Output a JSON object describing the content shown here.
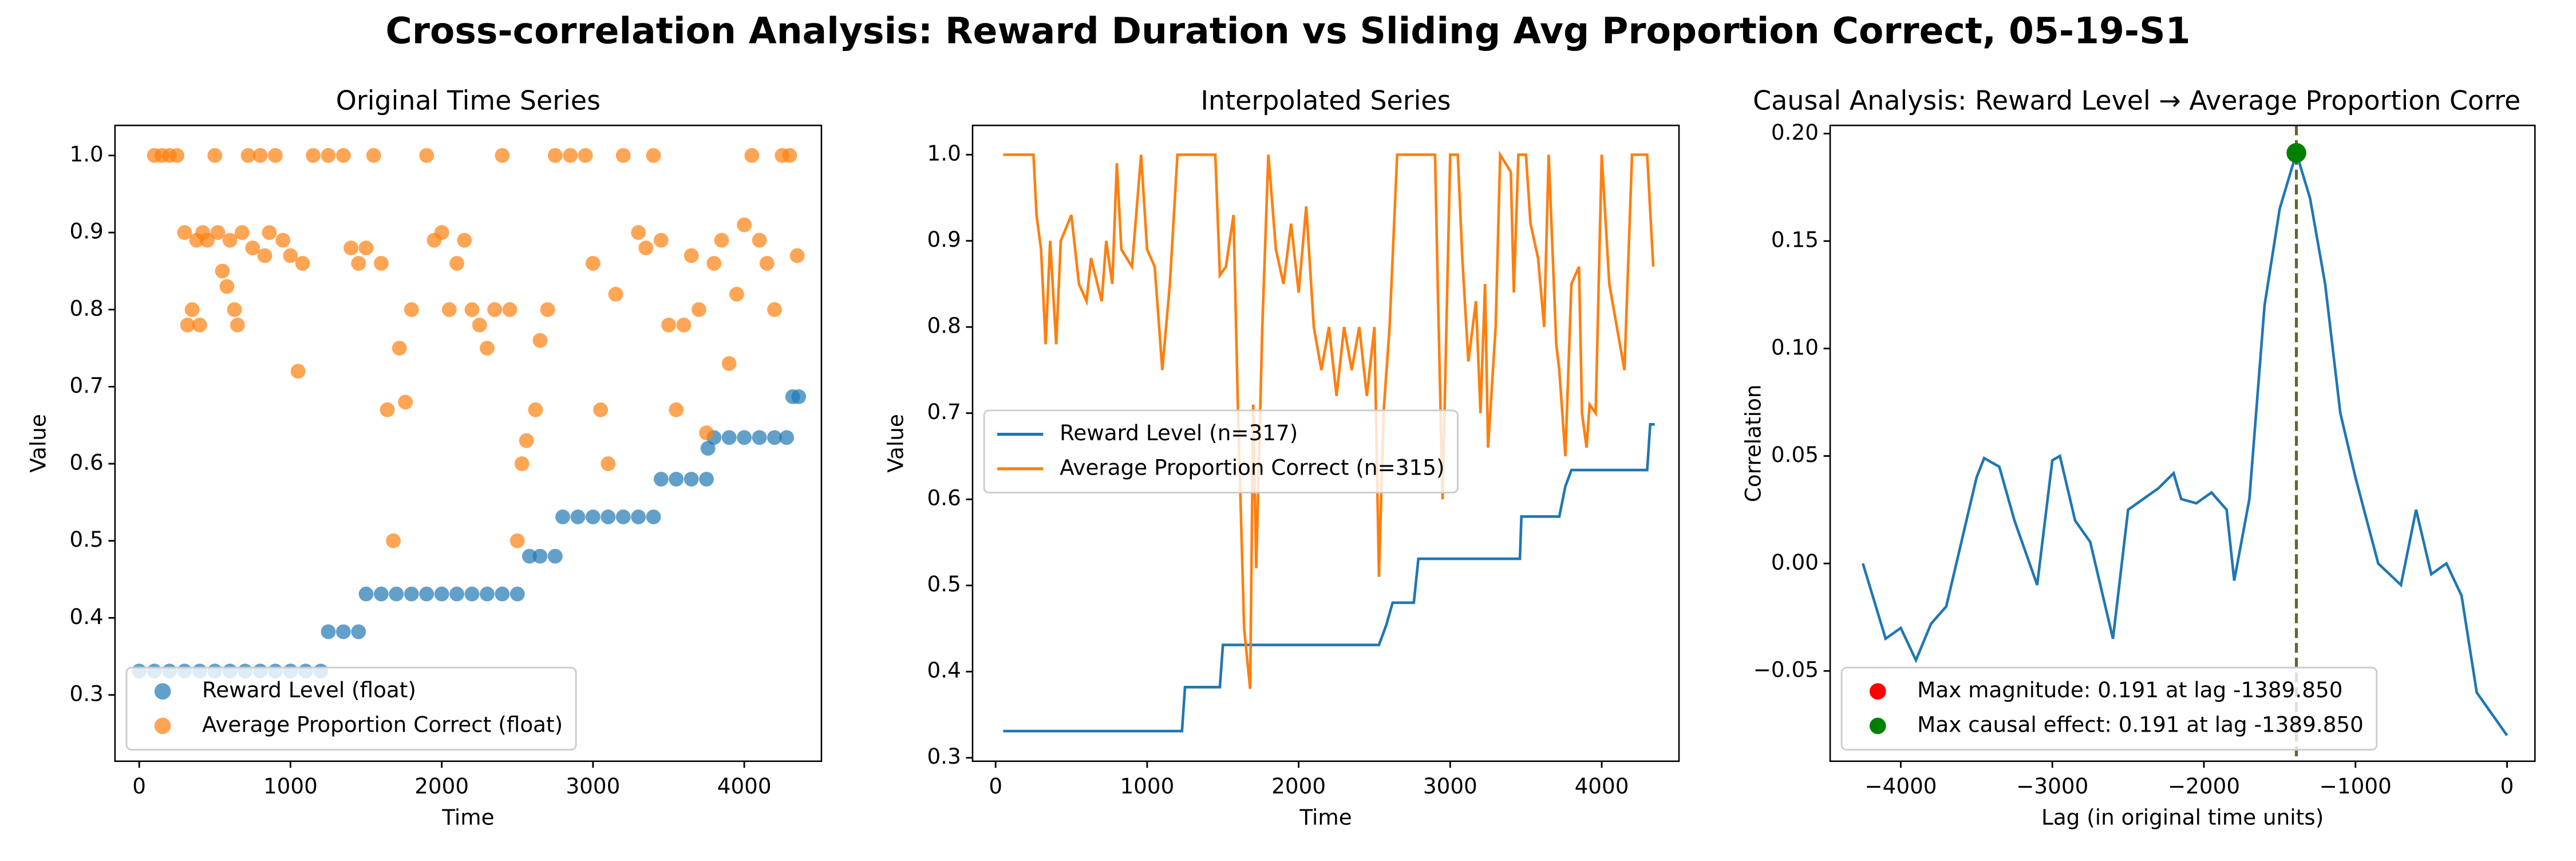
{
  "title": "Cross-correlation Analysis: Reward Duration vs Sliding Avg Proportion Correct, 05-19-S1",
  "chart_data": [
    {
      "type": "scatter",
      "title": "Original Time Series",
      "xlabel": "Time",
      "ylabel": "Value",
      "xlim": [
        -160,
        4510
      ],
      "ylim": [
        0.214,
        1.039
      ],
      "xticks": [
        0,
        1000,
        2000,
        3000,
        4000
      ],
      "yticks": [
        0.3,
        0.4,
        0.5,
        0.6,
        0.7,
        0.8,
        0.9,
        {
          "value": 1.0,
          "label": "1.0"
        }
      ],
      "legend": "lower left",
      "series": [
        {
          "name": "Reward Level (float)",
          "color": "#1f77b4",
          "x": [
            0,
            100,
            200,
            300,
            400,
            500,
            600,
            700,
            800,
            900,
            1000,
            1100,
            1200,
            1250,
            1350,
            1450,
            1500,
            1600,
            1700,
            1800,
            1900,
            2000,
            2100,
            2200,
            2300,
            2400,
            2500,
            2580,
            2650,
            2750,
            2800,
            2900,
            3000,
            3100,
            3200,
            3300,
            3400,
            3450,
            3550,
            3650,
            3750,
            3760,
            3800,
            3900,
            4000,
            4100,
            4200,
            4280,
            4320,
            4360
          ],
          "values": [
            0.331,
            0.331,
            0.331,
            0.331,
            0.331,
            0.331,
            0.331,
            0.331,
            0.331,
            0.331,
            0.331,
            0.331,
            0.331,
            0.382,
            0.382,
            0.382,
            0.431,
            0.431,
            0.431,
            0.431,
            0.431,
            0.431,
            0.431,
            0.431,
            0.431,
            0.431,
            0.431,
            0.48,
            0.48,
            0.48,
            0.531,
            0.531,
            0.531,
            0.531,
            0.531,
            0.531,
            0.531,
            0.58,
            0.58,
            0.58,
            0.58,
            0.62,
            0.634,
            0.634,
            0.634,
            0.634,
            0.634,
            0.634,
            0.687,
            0.687
          ]
        },
        {
          "name": "Average Proportion Correct (float)",
          "color": "#ff7f0e",
          "x": [
            100,
            150,
            200,
            250,
            300,
            320,
            350,
            380,
            400,
            420,
            450,
            500,
            520,
            550,
            580,
            600,
            630,
            650,
            680,
            720,
            750,
            800,
            830,
            860,
            900,
            950,
            1000,
            1050,
            1080,
            1150,
            1250,
            1350,
            1400,
            1450,
            1500,
            1550,
            1600,
            1640,
            1680,
            1720,
            1760,
            1800,
            1900,
            1950,
            2000,
            2050,
            2100,
            2150,
            2200,
            2250,
            2300,
            2350,
            2400,
            2450,
            2500,
            2530,
            2560,
            2620,
            2650,
            2700,
            2750,
            2850,
            2950,
            3000,
            3050,
            3100,
            3150,
            3200,
            3300,
            3350,
            3400,
            3450,
            3500,
            3550,
            3600,
            3650,
            3700,
            3750,
            3800,
            3850,
            3900,
            3950,
            4000,
            4050,
            4100,
            4150,
            4200,
            4250,
            4300,
            4350
          ],
          "values": [
            1,
            1,
            1,
            1,
            0.9,
            0.78,
            0.8,
            0.89,
            0.78,
            0.9,
            0.89,
            1,
            0.9,
            0.85,
            0.83,
            0.89,
            0.8,
            0.78,
            0.9,
            1,
            0.88,
            1,
            0.87,
            0.9,
            1,
            0.89,
            0.87,
            0.72,
            0.86,
            1,
            1,
            1,
            0.88,
            0.86,
            0.88,
            1,
            0.86,
            0.67,
            0.5,
            0.75,
            0.68,
            0.8,
            1,
            0.89,
            0.9,
            0.8,
            0.86,
            0.89,
            0.8,
            0.78,
            0.75,
            0.8,
            1,
            0.8,
            0.5,
            0.6,
            0.63,
            0.67,
            0.76,
            0.8,
            1,
            1,
            1,
            0.86,
            0.67,
            0.6,
            0.82,
            1,
            0.9,
            0.88,
            1,
            0.89,
            0.78,
            0.67,
            0.78,
            0.87,
            0.8,
            0.64,
            0.86,
            0.89,
            0.73,
            0.82,
            0.91,
            1,
            0.89,
            0.86,
            0.8,
            1,
            1,
            0.87
          ]
        }
      ]
    },
    {
      "type": "line",
      "title": "Interpolated Series",
      "xlabel": "Time",
      "ylabel": "Value",
      "xlim": [
        -152,
        4510
      ],
      "ylim": [
        0.296,
        1.034
      ],
      "xticks": [
        0,
        1000,
        2000,
        3000,
        4000
      ],
      "yticks": [
        0.3,
        0.4,
        0.5,
        0.6,
        0.7,
        0.8,
        0.9,
        {
          "value": 1.0,
          "label": "1.0"
        }
      ],
      "legend": "center left",
      "series": [
        {
          "name": "Reward Level (n=317)",
          "color": "#1f77b4",
          "x": [
            50,
            1230,
            1250,
            1480,
            1500,
            2530,
            2580,
            2620,
            2760,
            2790,
            3460,
            3470,
            3720,
            3760,
            3800,
            4300,
            4320,
            4350
          ],
          "values": [
            0.331,
            0.331,
            0.382,
            0.382,
            0.431,
            0.431,
            0.455,
            0.48,
            0.48,
            0.531,
            0.531,
            0.58,
            0.58,
            0.615,
            0.634,
            0.634,
            0.687,
            0.687
          ]
        },
        {
          "name": "Average Proportion Correct (n=315)",
          "color": "#ff7f0e",
          "x": [
            50,
            250,
            270,
            300,
            330,
            360,
            400,
            430,
            500,
            550,
            600,
            630,
            700,
            730,
            770,
            800,
            830,
            900,
            960,
            1000,
            1050,
            1100,
            1150,
            1200,
            1450,
            1480,
            1520,
            1570,
            1600,
            1640,
            1680,
            1700,
            1720,
            1760,
            1800,
            1850,
            1900,
            1950,
            2000,
            2050,
            2100,
            2150,
            2200,
            2250,
            2300,
            2350,
            2400,
            2450,
            2500,
            2530,
            2560,
            2600,
            2650,
            2900,
            2920,
            2950,
            3000,
            3050,
            3080,
            3120,
            3170,
            3200,
            3230,
            3250,
            3300,
            3330,
            3400,
            3420,
            3450,
            3500,
            3530,
            3580,
            3620,
            3650,
            3700,
            3720,
            3760,
            3800,
            3850,
            3870,
            3900,
            3920,
            3960,
            4000,
            4050,
            4100,
            4150,
            4200,
            4300,
            4340
          ],
          "values": [
            1,
            1,
            0.93,
            0.89,
            0.78,
            0.9,
            0.78,
            0.9,
            0.93,
            0.85,
            0.83,
            0.88,
            0.83,
            0.9,
            0.85,
            0.99,
            0.89,
            0.87,
            1,
            0.89,
            0.87,
            0.75,
            0.85,
            1,
            1,
            0.86,
            0.87,
            0.93,
            0.7,
            0.45,
            0.38,
            0.71,
            0.52,
            0.8,
            1,
            0.89,
            0.85,
            0.92,
            0.84,
            0.94,
            0.8,
            0.75,
            0.8,
            0.72,
            0.8,
            0.75,
            0.8,
            0.72,
            0.8,
            0.51,
            0.7,
            0.8,
            1,
            1,
            0.83,
            0.6,
            1,
            1,
            0.88,
            0.76,
            0.83,
            0.7,
            0.85,
            0.66,
            0.8,
            1,
            0.98,
            0.84,
            1,
            1,
            0.92,
            0.88,
            0.8,
            1,
            0.78,
            0.75,
            0.65,
            0.85,
            0.87,
            0.7,
            0.66,
            0.71,
            0.7,
            1,
            0.85,
            0.8,
            0.75,
            1,
            1,
            0.87
          ]
        }
      ]
    },
    {
      "type": "line",
      "title": "Causal Analysis: Reward Level → Average Proportion Corre",
      "xlabel": "Lag (in original time units)",
      "ylabel": "Correlation",
      "xlim": [
        -4466,
        184
      ],
      "ylim": [
        -0.092,
        0.2038
      ],
      "xticks": [
        {
          "value": -4000,
          "label": "−4000"
        },
        {
          "value": -3000,
          "label": "−3000"
        },
        {
          "value": -2000,
          "label": "−2000"
        },
        {
          "value": -1000,
          "label": "−1000"
        },
        0
      ],
      "yticks": [
        {
          "value": -0.05,
          "label": "−0.05"
        },
        {
          "value": 0,
          "label": "0.00"
        },
        0.05,
        {
          "value": 0.1,
          "label": "0.10"
        },
        0.15,
        {
          "value": 0.2,
          "label": "0.20"
        }
      ],
      "legend": "lower left",
      "vline": -1389.85,
      "vline_color": "#5b6b2b",
      "series": [
        {
          "name": null,
          "color": "#1f77b4",
          "x": [
            -4250,
            -4100,
            -4000,
            -3900,
            -3800,
            -3700,
            -3600,
            -3500,
            -3450,
            -3350,
            -3250,
            -3150,
            -3100,
            -3000,
            -2950,
            -2850,
            -2750,
            -2600,
            -2500,
            -2400,
            -2300,
            -2200,
            -2150,
            -2050,
            -1950,
            -1850,
            -1800,
            -1700,
            -1600,
            -1500,
            -1390,
            -1300,
            -1200,
            -1100,
            -1000,
            -850,
            -700,
            -600,
            -500,
            -400,
            -300,
            -200,
            -100,
            0
          ],
          "values": [
            0,
            -0.035,
            -0.03,
            -0.045,
            -0.028,
            -0.02,
            0.01,
            0.04,
            0.049,
            0.045,
            0.02,
            0,
            -0.01,
            0.048,
            0.05,
            0.02,
            0.01,
            -0.035,
            0.025,
            0.03,
            0.035,
            0.042,
            0.03,
            0.028,
            0.033,
            0.025,
            -0.008,
            0.03,
            0.12,
            0.165,
            0.191,
            0.17,
            0.13,
            0.07,
            0.04,
            0,
            -0.01,
            0.025,
            -0.005,
            0,
            -0.015,
            -0.06,
            -0.07,
            -0.08
          ]
        }
      ],
      "points": [
        {
          "name": "Max magnitude: 0.191 at lag -1389.850",
          "color": "#ff0000",
          "x": -1389.85,
          "y": 0.191
        },
        {
          "name": "Max causal effect: 0.191 at lag -1389.850",
          "color": "#008000",
          "x": -1389.85,
          "y": 0.191
        }
      ]
    }
  ]
}
